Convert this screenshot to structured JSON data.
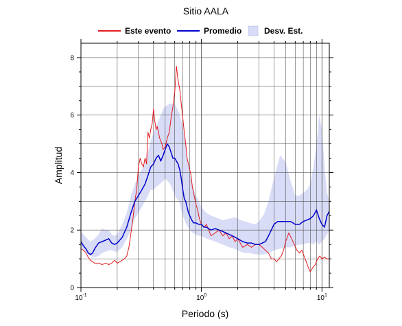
{
  "chart_data": {
    "type": "line",
    "title": "Sitio AALA",
    "xlabel": "Periodo (s)",
    "ylabel": "Amplitud",
    "xscale": "log",
    "xlim": [
      0.1,
      11.5
    ],
    "ylim": [
      0,
      8.5
    ],
    "grid": true,
    "legend_position": "top-center",
    "x_ticks": [
      {
        "base": "10",
        "exp": "-1",
        "value": 0.1
      },
      {
        "base": "10",
        "exp": "0",
        "value": 1
      },
      {
        "base": "10",
        "exp": "1",
        "value": 10
      }
    ],
    "y_ticks": [
      "0",
      "2",
      "4",
      "6",
      "8"
    ],
    "y_tick_values": [
      0,
      2,
      4,
      6,
      8
    ],
    "legend": {
      "este_evento": "Este evento",
      "promedio": "Promedio",
      "desv_est": "Desv. Est."
    },
    "colors": {
      "este_evento": "#e31a1c",
      "promedio": "#0000cc",
      "desv_est": "#d8dcf6"
    },
    "series": [
      {
        "name": "Este evento",
        "x": [
          0.1,
          0.105,
          0.11,
          0.115,
          0.12,
          0.125,
          0.13,
          0.14,
          0.15,
          0.16,
          0.17,
          0.18,
          0.19,
          0.2,
          0.21,
          0.22,
          0.23,
          0.24,
          0.25,
          0.26,
          0.27,
          0.28,
          0.29,
          0.3,
          0.31,
          0.32,
          0.33,
          0.34,
          0.35,
          0.36,
          0.37,
          0.38,
          0.39,
          0.4,
          0.41,
          0.42,
          0.43,
          0.44,
          0.45,
          0.46,
          0.47,
          0.48,
          0.5,
          0.52,
          0.54,
          0.56,
          0.58,
          0.6,
          0.62,
          0.64,
          0.66,
          0.68,
          0.7,
          0.72,
          0.74,
          0.76,
          0.78,
          0.8,
          0.82,
          0.84,
          0.86,
          0.88,
          0.9,
          0.93,
          0.96,
          1.0,
          1.05,
          1.1,
          1.15,
          1.2,
          1.3,
          1.4,
          1.5,
          1.6,
          1.7,
          1.8,
          1.9,
          2.0,
          2.2,
          2.4,
          2.6,
          2.8,
          3.0,
          3.2,
          3.4,
          3.6,
          3.8,
          4.0,
          4.2,
          4.4,
          4.6,
          4.8,
          5.0,
          5.3,
          5.6,
          5.9,
          6.2,
          6.5,
          6.8,
          7.1,
          7.4,
          7.7,
          8.0,
          8.4,
          8.8,
          9.2,
          9.6,
          10.0,
          10.5,
          11.0,
          11.5
        ],
        "values": [
          1.35,
          1.3,
          1.2,
          1.05,
          0.95,
          0.9,
          0.85,
          0.85,
          0.8,
          0.85,
          0.8,
          0.85,
          0.95,
          0.85,
          0.9,
          0.95,
          1.0,
          1.1,
          1.4,
          1.9,
          2.4,
          3.0,
          3.4,
          4.2,
          4.5,
          4.3,
          4.2,
          4.5,
          4.3,
          5.4,
          5.2,
          5.5,
          5.7,
          6.2,
          5.8,
          5.5,
          5.6,
          5.4,
          5.2,
          5.1,
          5.0,
          4.8,
          4.9,
          5.2,
          5.4,
          5.9,
          6.3,
          6.8,
          7.7,
          7.2,
          6.9,
          6.4,
          5.9,
          5.4,
          5.0,
          4.5,
          4.3,
          4.1,
          3.9,
          3.5,
          3.3,
          3.1,
          2.9,
          2.7,
          2.4,
          2.2,
          2.1,
          2.2,
          2.0,
          1.8,
          1.9,
          2.0,
          1.8,
          1.9,
          1.7,
          1.8,
          1.6,
          1.7,
          1.4,
          1.5,
          1.4,
          1.5,
          1.5,
          1.4,
          1.3,
          1.2,
          1.0,
          1.0,
          0.9,
          1.0,
          1.1,
          1.3,
          1.6,
          1.9,
          1.7,
          1.5,
          1.3,
          1.2,
          1.3,
          1.1,
          0.9,
          0.7,
          0.55,
          0.7,
          0.8,
          1.0,
          1.1,
          1.0,
          1.05,
          1.0,
          1.0
        ]
      },
      {
        "name": "Promedio",
        "x": [
          0.1,
          0.105,
          0.11,
          0.115,
          0.12,
          0.125,
          0.13,
          0.14,
          0.15,
          0.16,
          0.17,
          0.18,
          0.19,
          0.2,
          0.22,
          0.24,
          0.26,
          0.28,
          0.3,
          0.32,
          0.34,
          0.36,
          0.38,
          0.4,
          0.42,
          0.44,
          0.46,
          0.48,
          0.5,
          0.52,
          0.54,
          0.56,
          0.58,
          0.6,
          0.62,
          0.64,
          0.66,
          0.68,
          0.7,
          0.72,
          0.74,
          0.76,
          0.78,
          0.8,
          0.83,
          0.86,
          0.9,
          0.95,
          1.0,
          1.05,
          1.1,
          1.2,
          1.3,
          1.4,
          1.5,
          1.6,
          1.7,
          1.8,
          1.9,
          2.0,
          2.2,
          2.4,
          2.6,
          2.8,
          3.0,
          3.2,
          3.4,
          3.6,
          3.8,
          4.0,
          4.3,
          4.6,
          5.0,
          5.5,
          6.0,
          6.5,
          7.0,
          7.5,
          8.0,
          8.5,
          9.0,
          9.5,
          10.0,
          10.5,
          11.0,
          11.5
        ],
        "values": [
          1.6,
          1.45,
          1.35,
          1.2,
          1.15,
          1.2,
          1.35,
          1.55,
          1.6,
          1.65,
          1.7,
          1.55,
          1.5,
          1.55,
          1.75,
          2.1,
          2.6,
          3.0,
          3.2,
          3.4,
          3.6,
          3.9,
          4.2,
          4.3,
          4.5,
          4.6,
          4.4,
          4.6,
          4.8,
          5.0,
          4.9,
          4.7,
          4.5,
          4.5,
          4.4,
          4.3,
          4.1,
          3.8,
          3.4,
          3.1,
          3.0,
          2.8,
          2.6,
          2.5,
          2.35,
          2.25,
          2.25,
          2.2,
          2.2,
          2.1,
          2.1,
          2.0,
          2.05,
          2.0,
          1.95,
          1.9,
          1.85,
          1.8,
          1.75,
          1.7,
          1.6,
          1.55,
          1.55,
          1.5,
          1.5,
          1.55,
          1.6,
          1.8,
          2.0,
          2.2,
          2.3,
          2.3,
          2.3,
          2.3,
          2.2,
          2.2,
          2.3,
          2.35,
          2.4,
          2.5,
          2.7,
          2.4,
          2.2,
          2.1,
          2.5,
          2.65
        ]
      }
    ],
    "band": {
      "name": "Desv. Est.",
      "x": [
        0.1,
        0.11,
        0.12,
        0.13,
        0.14,
        0.15,
        0.16,
        0.17,
        0.18,
        0.19,
        0.2,
        0.22,
        0.24,
        0.26,
        0.28,
        0.3,
        0.32,
        0.34,
        0.36,
        0.38,
        0.4,
        0.42,
        0.45,
        0.48,
        0.5,
        0.55,
        0.6,
        0.65,
        0.7,
        0.75,
        0.8,
        0.85,
        0.9,
        0.95,
        1.0,
        1.1,
        1.2,
        1.3,
        1.4,
        1.5,
        1.7,
        1.9,
        2.1,
        2.3,
        2.5,
        2.8,
        3.0,
        3.3,
        3.6,
        4.0,
        4.5,
        5.0,
        5.5,
        6.0,
        6.5,
        7.0,
        7.5,
        8.0,
        8.5,
        9.0,
        9.5,
        10.0,
        10.5,
        11.0,
        11.5
      ],
      "lower": [
        1.35,
        1.2,
        1.1,
        1.05,
        1.1,
        1.2,
        1.25,
        1.3,
        1.3,
        1.25,
        1.25,
        1.4,
        1.7,
        2.0,
        2.4,
        2.6,
        2.8,
        3.0,
        3.2,
        3.4,
        3.4,
        3.5,
        3.6,
        3.7,
        3.8,
        3.6,
        3.2,
        3.0,
        2.5,
        2.2,
        2.0,
        1.9,
        1.85,
        1.8,
        1.8,
        1.7,
        1.65,
        1.6,
        1.55,
        1.5,
        1.4,
        1.35,
        1.25,
        1.2,
        1.2,
        1.15,
        1.15,
        1.15,
        1.2,
        1.3,
        1.35,
        1.4,
        1.4,
        1.45,
        1.5,
        1.5,
        1.55,
        1.55,
        1.5,
        1.6,
        1.5,
        1.6,
        1.7,
        1.85,
        1.95
      ],
      "upper": [
        1.95,
        1.75,
        1.6,
        1.7,
        1.85,
        2.05,
        2.0,
        2.0,
        1.85,
        1.8,
        1.85,
        2.2,
        2.6,
        3.2,
        3.6,
        3.9,
        4.1,
        4.3,
        4.7,
        5.1,
        5.4,
        5.6,
        5.9,
        6.2,
        6.3,
        6.4,
        6.4,
        6.1,
        5.6,
        4.8,
        4.0,
        3.5,
        3.2,
        3.0,
        2.8,
        2.6,
        2.5,
        2.45,
        2.4,
        2.35,
        2.4,
        2.45,
        2.35,
        2.3,
        2.25,
        2.2,
        2.3,
        2.55,
        3.0,
        3.8,
        4.6,
        4.35,
        3.7,
        3.2,
        3.2,
        3.3,
        3.4,
        3.6,
        4.2,
        5.0,
        6.0,
        5.5,
        4.2,
        3.3,
        3.0
      ]
    }
  }
}
